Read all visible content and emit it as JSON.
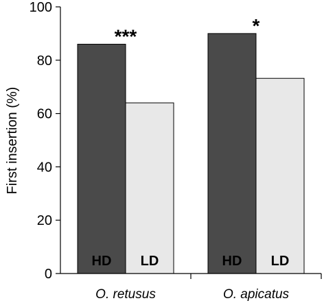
{
  "chart_data": {
    "type": "bar",
    "title": "",
    "xlabel": "",
    "ylabel": "First insertion (%)",
    "ylim": [
      0,
      100
    ],
    "yticks": [
      0,
      20,
      40,
      60,
      80,
      100
    ],
    "grid": false,
    "legend": "none",
    "categories": [
      "O. retusus",
      "O. apicatus"
    ],
    "series": [
      {
        "name": "HD",
        "values": [
          86,
          90
        ],
        "color": "#4a4a4a",
        "label_color": "#000000"
      },
      {
        "name": "LD",
        "values": [
          64,
          73.2
        ],
        "color": "#e8e8e8",
        "label_color": "#000000"
      }
    ],
    "significance": [
      "***",
      "*"
    ]
  }
}
